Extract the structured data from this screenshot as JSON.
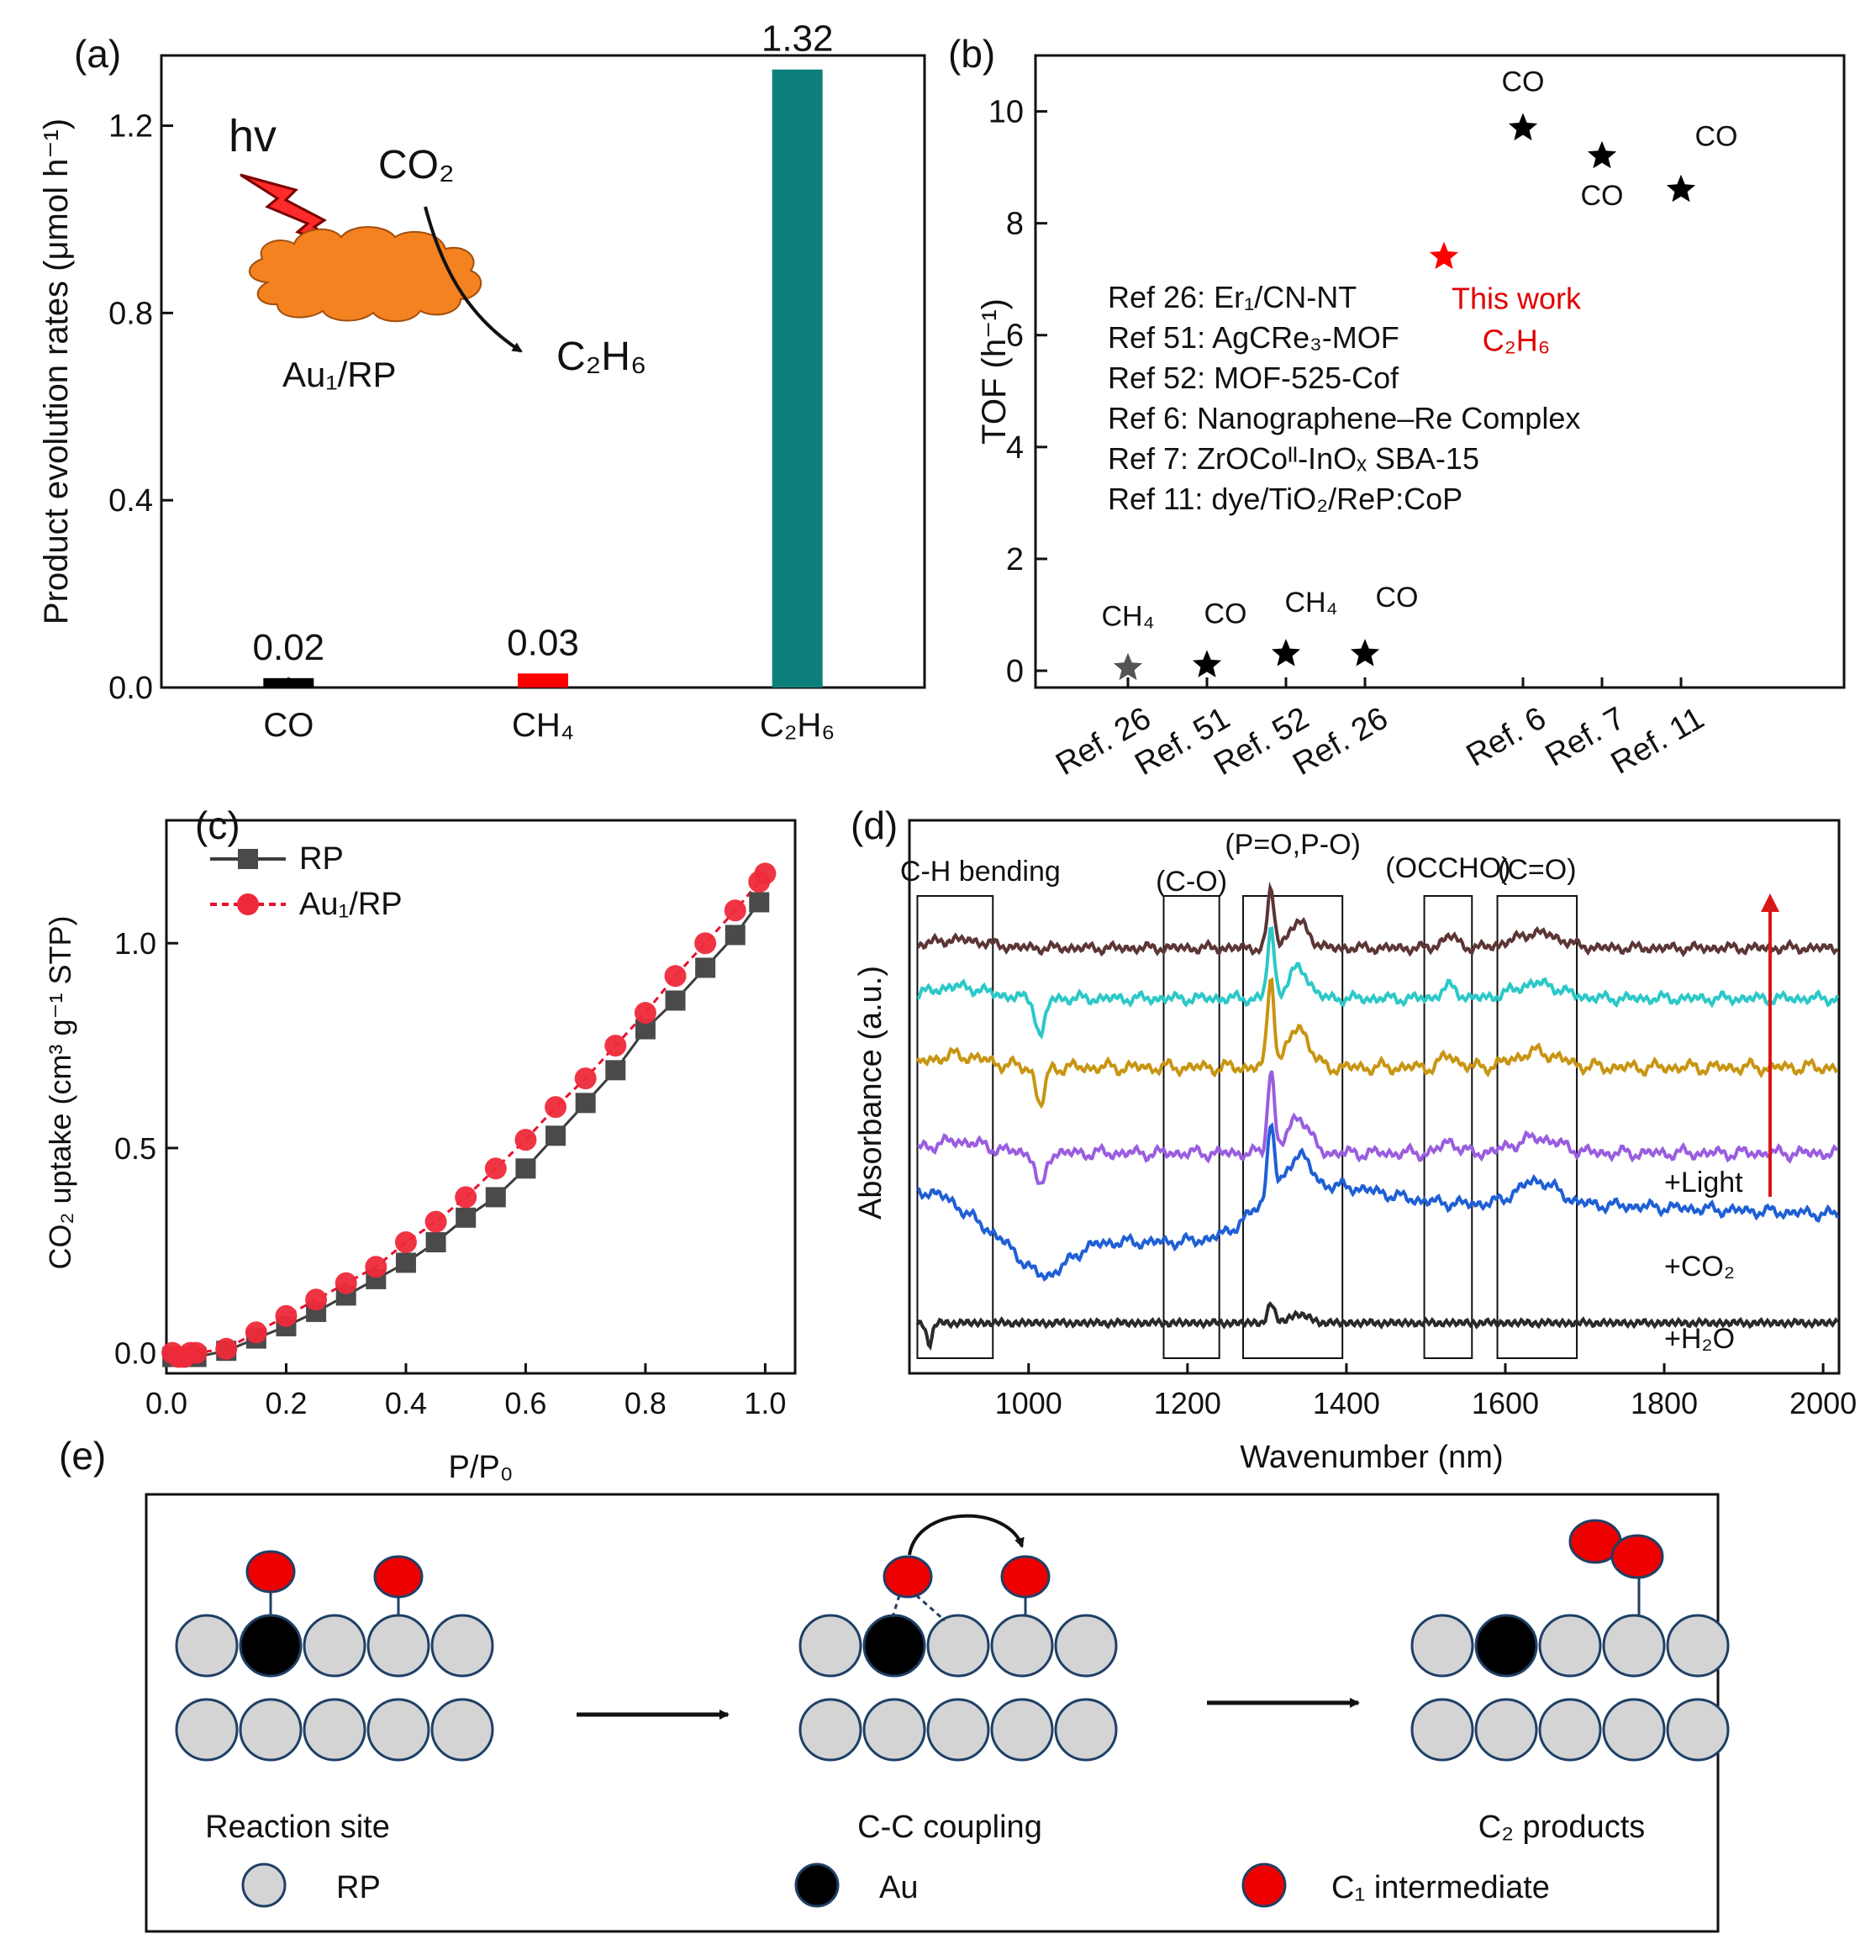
{
  "panel_labels": [
    "(a)",
    "(b)",
    "(c)",
    "(d)",
    "(e)"
  ],
  "chart_data": [
    {
      "panel": "(a)",
      "type": "bar",
      "ylabel": "Product evolution rates (μmol h⁻¹)",
      "ylim": [
        0,
        1.35
      ],
      "yticks": [
        "0.0",
        "0.4",
        "0.8",
        "1.2"
      ],
      "categories": [
        "CO",
        "CH₄",
        "C₂H₆"
      ],
      "values": [
        0.02,
        0.03,
        1.32
      ],
      "value_labels": [
        "0.02",
        "0.03",
        "1.32"
      ],
      "colors": [
        "#000000",
        "#ff0000",
        "#0d7f7a"
      ],
      "inset": {
        "light": "hv",
        "reactant": "CO₂",
        "product": "C₂H₆",
        "catalyst": "Au₁/RP"
      }
    },
    {
      "panel": "(b)",
      "type": "scatter",
      "ylabel": "TOF (h⁻¹)",
      "ylim": [
        -0.3,
        11
      ],
      "yticks": [
        "0",
        "2",
        "4",
        "6",
        "8",
        "10"
      ],
      "categories": [
        "Ref. 26",
        "Ref. 51",
        "Ref. 52",
        "Ref. 26",
        "",
        "Ref. 6",
        "Ref. 7",
        "Ref. 11"
      ],
      "points": [
        {
          "x": 1,
          "y": 0.05,
          "label": "CH₄",
          "color": "#555555"
        },
        {
          "x": 2,
          "y": 0.1,
          "label": "CO",
          "color": "#000000"
        },
        {
          "x": 3,
          "y": 0.3,
          "label": "CH₄",
          "color": "#000000"
        },
        {
          "x": 4,
          "y": 0.3,
          "label": "CO",
          "color": "#000000"
        },
        {
          "x": 5,
          "y": 7.4,
          "label": "This work C₂H₆",
          "color": "#ff0000"
        },
        {
          "x": 6,
          "y": 9.7,
          "label": "CO",
          "color": "#000000"
        },
        {
          "x": 7,
          "y": 9.2,
          "label": "CO",
          "color": "#000000"
        },
        {
          "x": 8,
          "y": 8.6,
          "label": "CO",
          "color": "#000000"
        }
      ],
      "legend_text": [
        "Ref 26: Er₁/CN-NT",
        "Ref 51: AgCRe₃-MOF",
        "Ref 52: MOF-525-Cof",
        "Ref 6: Nanographene–Re Complex",
        "Ref 7: ZrOCoᴵᴵ-InOₓ SBA-15",
        "Ref 11: dye/TiO₂/ReP:CoP"
      ]
    },
    {
      "panel": "(c)",
      "type": "line",
      "xlabel": "P/P₀",
      "ylabel": "CO₂ uptake (cm³ g⁻¹ STP)",
      "xlim": [
        0,
        1.05
      ],
      "ylim": [
        -0.05,
        1.3
      ],
      "xticks": [
        "0.0",
        "0.2",
        "0.4",
        "0.6",
        "0.8",
        "1.0"
      ],
      "yticks": [
        "0.0",
        "0.5",
        "1.0"
      ],
      "legend": "top-left",
      "series": [
        {
          "name": "RP",
          "color": "#3d3d3d",
          "marker": "square",
          "x": [
            0.01,
            0.02,
            0.03,
            0.04,
            0.05,
            0.1,
            0.15,
            0.2,
            0.25,
            0.3,
            0.35,
            0.4,
            0.45,
            0.5,
            0.55,
            0.6,
            0.65,
            0.7,
            0.75,
            0.8,
            0.85,
            0.9,
            0.95,
            0.99
          ],
          "y": [
            -0.01,
            -0.01,
            -0.01,
            -0.01,
            -0.01,
            0.005,
            0.035,
            0.065,
            0.1,
            0.14,
            0.18,
            0.22,
            0.27,
            0.33,
            0.38,
            0.45,
            0.53,
            0.61,
            0.69,
            0.79,
            0.86,
            0.94,
            1.02,
            1.1
          ]
        },
        {
          "name": "Au₁/RP",
          "color": "#e8112d",
          "marker": "circle",
          "x": [
            0.01,
            0.02,
            0.03,
            0.04,
            0.05,
            0.1,
            0.15,
            0.2,
            0.25,
            0.3,
            0.35,
            0.4,
            0.45,
            0.5,
            0.55,
            0.6,
            0.65,
            0.7,
            0.75,
            0.8,
            0.85,
            0.9,
            0.95,
            0.99,
            1.0
          ],
          "y": [
            0.0,
            -0.01,
            -0.01,
            0.0,
            0.0,
            0.01,
            0.05,
            0.09,
            0.13,
            0.17,
            0.21,
            0.27,
            0.32,
            0.38,
            0.45,
            0.52,
            0.6,
            0.67,
            0.75,
            0.83,
            0.92,
            1.0,
            1.08,
            1.15,
            1.17
          ]
        }
      ]
    },
    {
      "panel": "(d)",
      "type": "line",
      "xlabel": "Wavenumber (nm)",
      "ylabel": "Absorbance (a.u.)",
      "xlim": [
        850,
        2020
      ],
      "xticks": [
        "1000",
        "1200",
        "1400",
        "1600",
        "1800",
        "2000"
      ],
      "curve_labels": [
        "+H₂O",
        "+CO₂",
        "+Light"
      ],
      "boxes": [
        {
          "label": "C-H bending",
          "x": [
            860,
            955
          ]
        },
        {
          "label": "(C-O)",
          "x": [
            1170,
            1240
          ]
        },
        {
          "label": "(P=O,P-O)",
          "x": [
            1270,
            1395
          ]
        },
        {
          "label": "(OCCHO)",
          "x": [
            1498,
            1558
          ]
        },
        {
          "label": "(C=O)",
          "x": [
            1590,
            1690
          ]
        }
      ],
      "series": [
        {
          "color": "#2a2a2a",
          "offset": 0.0
        },
        {
          "color": "#1f5fd6",
          "offset": 1.0
        },
        {
          "color": "#9a5de0",
          "offset": 2.0
        },
        {
          "color": "#c89512",
          "offset": 3.0
        },
        {
          "color": "#2cc8c8",
          "offset": 3.8
        },
        {
          "color": "#5c3535",
          "offset": 4.6
        }
      ]
    }
  ],
  "scheme": {
    "steps": [
      "Reaction site",
      "C-C coupling",
      "C₂ products"
    ],
    "legend": [
      "RP",
      "Au",
      "C₁ intermediate"
    ]
  }
}
